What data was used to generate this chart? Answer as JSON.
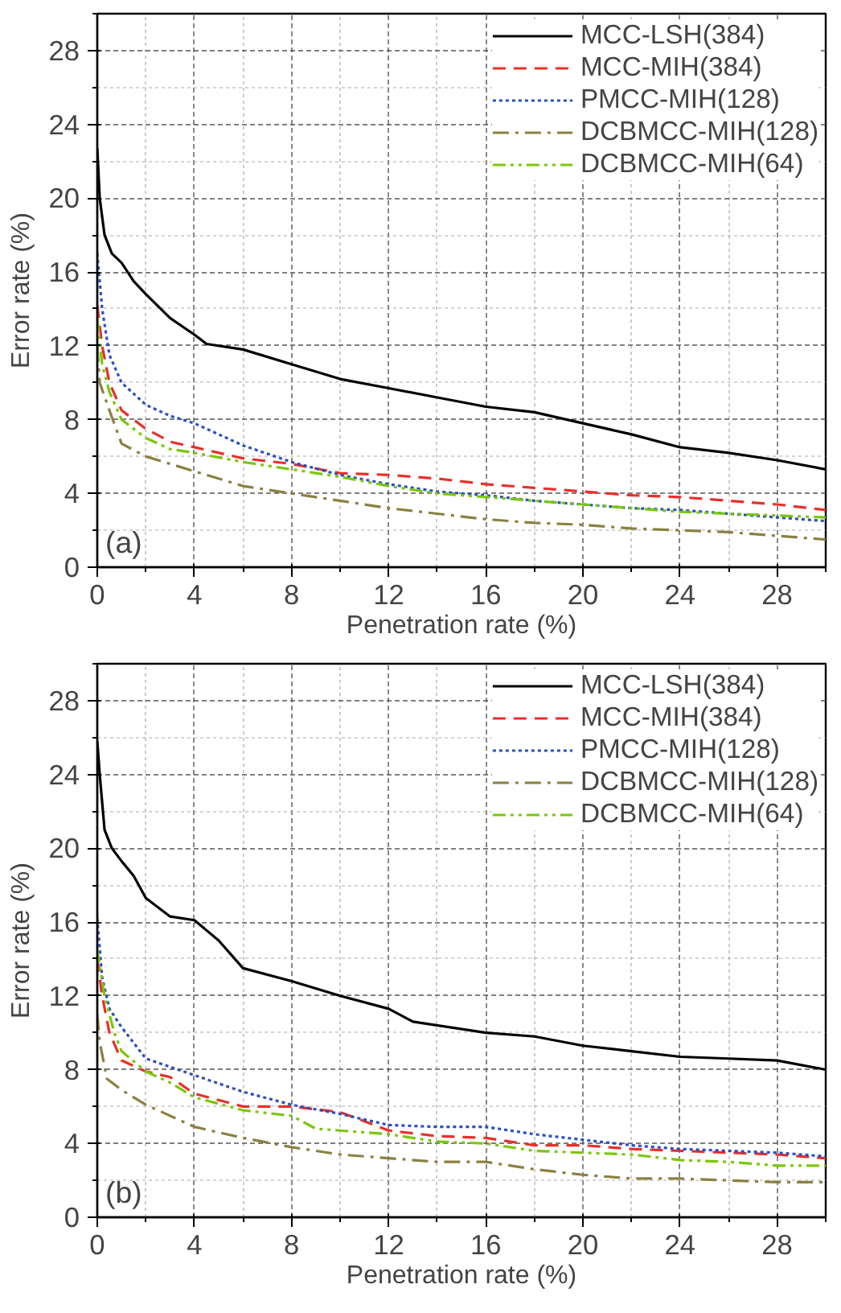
{
  "chart_data": [
    {
      "type": "line",
      "xlabel": "Penetration rate (%)",
      "ylabel": "Error rate (%)",
      "annotations": [
        "(a)"
      ],
      "xlim": [
        0,
        30
      ],
      "ylim": [
        0,
        30
      ],
      "xticks": [
        0,
        4,
        8,
        12,
        16,
        20,
        24,
        28
      ],
      "yticks": [
        0,
        4,
        8,
        12,
        16,
        20,
        24,
        28
      ],
      "grid": true,
      "legend": "top right",
      "series": [
        {
          "name": "MCC-LSH(384)",
          "color": "#000000",
          "line_style": "solid",
          "x": [
            0,
            0.1,
            0.3,
            0.6,
            1,
            1.5,
            2,
            3,
            4,
            4.5,
            6,
            8,
            10,
            12,
            14,
            16,
            18,
            20,
            22,
            24,
            26,
            28,
            30
          ],
          "values": [
            22.7,
            20,
            18,
            17,
            16.5,
            15.5,
            14.8,
            13.5,
            12.6,
            12.1,
            11.8,
            11,
            10.2,
            9.7,
            9.2,
            8.7,
            8.4,
            7.8,
            7.2,
            6.5,
            6.2,
            5.8,
            5.3
          ]
        },
        {
          "name": "MCC-MIH(384)",
          "color": "#e8302a",
          "line_style": "dashed",
          "x": [
            0,
            0.2,
            0.5,
            1,
            2,
            3,
            4,
            6,
            8,
            10,
            12,
            14,
            16,
            18,
            20,
            22,
            24,
            26,
            28,
            30
          ],
          "values": [
            14.2,
            12,
            10,
            8.5,
            7.5,
            6.8,
            6.5,
            5.9,
            5.6,
            5.1,
            5.0,
            4.8,
            4.5,
            4.3,
            4.1,
            3.9,
            3.8,
            3.6,
            3.4,
            3.1
          ]
        },
        {
          "name": "PMCC-MIH(128)",
          "color": "#2a4fc0",
          "line_style": "dotted",
          "x": [
            0,
            0.2,
            0.5,
            1,
            2,
            3,
            4,
            6,
            8,
            10,
            12,
            14,
            16,
            18,
            20,
            22,
            24,
            26,
            28,
            30
          ],
          "values": [
            17,
            14,
            11.5,
            10,
            8.8,
            8.2,
            7.8,
            6.6,
            5.7,
            5.0,
            4.5,
            4.1,
            3.9,
            3.6,
            3.4,
            3.2,
            3.1,
            2.9,
            2.7,
            2.5
          ]
        },
        {
          "name": "DCBMCC-MIH(128)",
          "color": "#8b8040",
          "line_style": "dashdot",
          "x": [
            0,
            0.1,
            0.5,
            1,
            2,
            4,
            6,
            8,
            10,
            12,
            14,
            16,
            18,
            20,
            22,
            24,
            26,
            28,
            30
          ],
          "values": [
            12,
            10,
            8.5,
            6.7,
            6.0,
            5.2,
            4.4,
            4.0,
            3.6,
            3.2,
            2.9,
            2.6,
            2.4,
            2.3,
            2.1,
            2.0,
            1.9,
            1.7,
            1.5
          ]
        },
        {
          "name": "DCBMCC-MIH(64)",
          "color": "#7ac70c",
          "line_style": "dashdotdot",
          "x": [
            0,
            0.2,
            0.5,
            1,
            2,
            3,
            4,
            6,
            8,
            10,
            12,
            14,
            16,
            18,
            20,
            22,
            24,
            26,
            28,
            30
          ],
          "values": [
            13.5,
            11,
            9.5,
            8,
            7.0,
            6.4,
            6.2,
            5.7,
            5.3,
            4.9,
            4.4,
            4.0,
            3.8,
            3.6,
            3.4,
            3.2,
            3.0,
            2.9,
            2.8,
            2.7
          ]
        }
      ]
    },
    {
      "type": "line",
      "xlabel": "Penetration rate (%)",
      "ylabel": "Error rate (%)",
      "annotations": [
        "(b)"
      ],
      "xlim": [
        0,
        30
      ],
      "ylim": [
        0,
        30
      ],
      "xticks": [
        0,
        4,
        8,
        12,
        16,
        20,
        24,
        28
      ],
      "yticks": [
        0,
        4,
        8,
        12,
        16,
        20,
        24,
        28
      ],
      "grid": true,
      "legend": "top right",
      "series": [
        {
          "name": "MCC-LSH(384)",
          "color": "#000000",
          "line_style": "solid",
          "x": [
            0,
            0.1,
            0.3,
            0.6,
            1,
            1.5,
            2,
            3,
            4,
            5,
            6,
            8,
            10,
            12,
            13,
            16,
            18,
            20,
            22,
            24,
            26,
            28,
            30
          ],
          "values": [
            25.8,
            24,
            21,
            20,
            19.3,
            18.5,
            17.3,
            16.3,
            16.1,
            15,
            13.5,
            12.8,
            12,
            11.3,
            10.6,
            10.0,
            9.8,
            9.3,
            9.0,
            8.7,
            8.6,
            8.5,
            8.0
          ]
        },
        {
          "name": "MCC-MIH(384)",
          "color": "#e8302a",
          "line_style": "dashed",
          "x": [
            0,
            0.2,
            0.5,
            1,
            2,
            3,
            4,
            6,
            8,
            10,
            12,
            14,
            16,
            18,
            20,
            22,
            24,
            26,
            28,
            30
          ],
          "values": [
            14,
            12,
            10,
            8.5,
            7.9,
            7.6,
            6.7,
            6.0,
            6.0,
            5.7,
            4.7,
            4.4,
            4.3,
            3.9,
            3.9,
            3.7,
            3.6,
            3.5,
            3.4,
            3.2
          ]
        },
        {
          "name": "PMCC-MIH(128)",
          "color": "#2a4fc0",
          "line_style": "dotted",
          "x": [
            0,
            0.2,
            0.5,
            1,
            2,
            4,
            6,
            8,
            10,
            12,
            14,
            16,
            18,
            20,
            22,
            24,
            26,
            28,
            30
          ],
          "values": [
            16.2,
            13,
            11.3,
            10.3,
            8.6,
            7.7,
            6.8,
            6.1,
            5.6,
            5.0,
            4.9,
            4.9,
            4.5,
            4.2,
            3.9,
            3.7,
            3.6,
            3.5,
            3.3
          ]
        },
        {
          "name": "DCBMCC-MIH(128)",
          "color": "#8b8040",
          "line_style": "dashdot",
          "x": [
            0,
            0.1,
            0.4,
            1,
            2,
            4,
            6,
            8,
            10,
            12,
            14,
            16,
            18,
            20,
            22,
            24,
            26,
            28,
            30
          ],
          "values": [
            11,
            9.5,
            7.5,
            6.9,
            6.1,
            4.9,
            4.3,
            3.8,
            3.4,
            3.2,
            3.0,
            3.0,
            2.6,
            2.3,
            2.1,
            2.1,
            2.0,
            1.9,
            1.9
          ]
        },
        {
          "name": "DCBMCC-MIH(64)",
          "color": "#7ac70c",
          "line_style": "dashdotdot",
          "x": [
            0,
            0.3,
            0.7,
            1,
            2,
            3,
            4,
            6,
            8,
            9,
            12,
            14,
            16,
            18,
            20,
            22,
            24,
            26,
            28,
            30
          ],
          "values": [
            14.5,
            12,
            10,
            9,
            7.9,
            7.3,
            6.5,
            5.8,
            5.5,
            4.8,
            4.5,
            4.1,
            4.0,
            3.6,
            3.5,
            3.4,
            3.1,
            3.0,
            2.8,
            2.8
          ]
        }
      ]
    }
  ]
}
